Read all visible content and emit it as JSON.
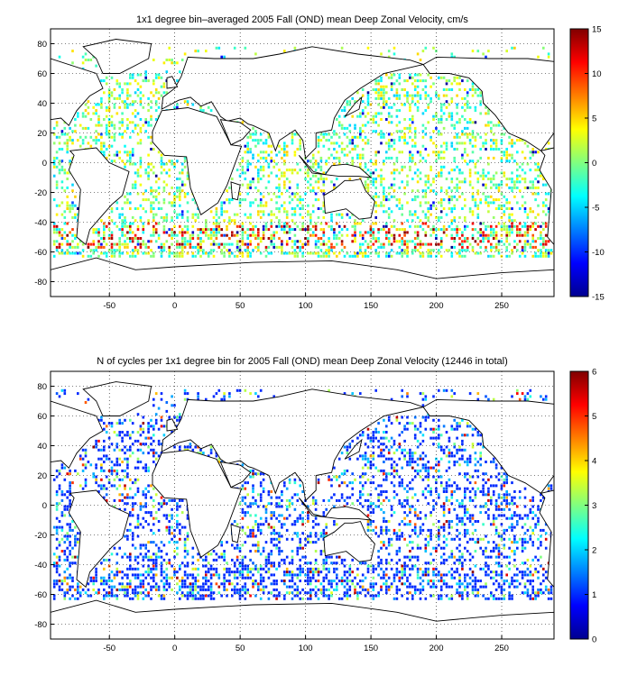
{
  "chart_data": [
    {
      "type": "heatmap",
      "title": "1x1 degree bin–averaged 2005 Fall (OND) mean Deep Zonal Velocity, cm/s",
      "xlim": [
        -95,
        290
      ],
      "ylim": [
        -90,
        90
      ],
      "x_ticks": [
        "-50",
        "0",
        "50",
        "100",
        "150",
        "200",
        "250"
      ],
      "x_tick_values": [
        -50,
        0,
        50,
        100,
        150,
        200,
        250
      ],
      "y_ticks": [
        "80",
        "60",
        "40",
        "20",
        "0",
        "-20",
        "-40",
        "-60",
        "-80"
      ],
      "y_tick_values": [
        80,
        60,
        40,
        20,
        0,
        -20,
        -40,
        -60,
        -80
      ],
      "grid": true,
      "colorbar": {
        "range": [
          -15,
          15
        ],
        "ticks": [
          "15",
          "10",
          "5",
          "0",
          "-5",
          "-10",
          "-15"
        ],
        "tick_values": [
          15,
          10,
          5,
          0,
          -5,
          -10,
          -15
        ],
        "colormap": "jet"
      }
    },
    {
      "type": "heatmap",
      "title": "N of cycles per 1x1 degree bin for 2005 Fall (OND) mean Deep Zonal Velocity (12446 in total)",
      "xlim": [
        -95,
        290
      ],
      "ylim": [
        -90,
        90
      ],
      "x_ticks": [
        "-50",
        "0",
        "50",
        "100",
        "150",
        "200",
        "250"
      ],
      "x_tick_values": [
        -50,
        0,
        50,
        100,
        150,
        200,
        250
      ],
      "y_ticks": [
        "80",
        "60",
        "40",
        "20",
        "0",
        "-20",
        "-40",
        "-60",
        "-80"
      ],
      "y_tick_values": [
        80,
        60,
        40,
        20,
        0,
        -20,
        -40,
        -60,
        -80
      ],
      "grid": true,
      "total_cycles": 12446,
      "colorbar": {
        "range": [
          0,
          6
        ],
        "ticks": [
          "6",
          "5",
          "4",
          "3",
          "2",
          "1",
          "0"
        ],
        "tick_values": [
          6,
          5,
          4,
          3,
          2,
          1,
          0
        ],
        "colormap": "jet"
      }
    }
  ]
}
